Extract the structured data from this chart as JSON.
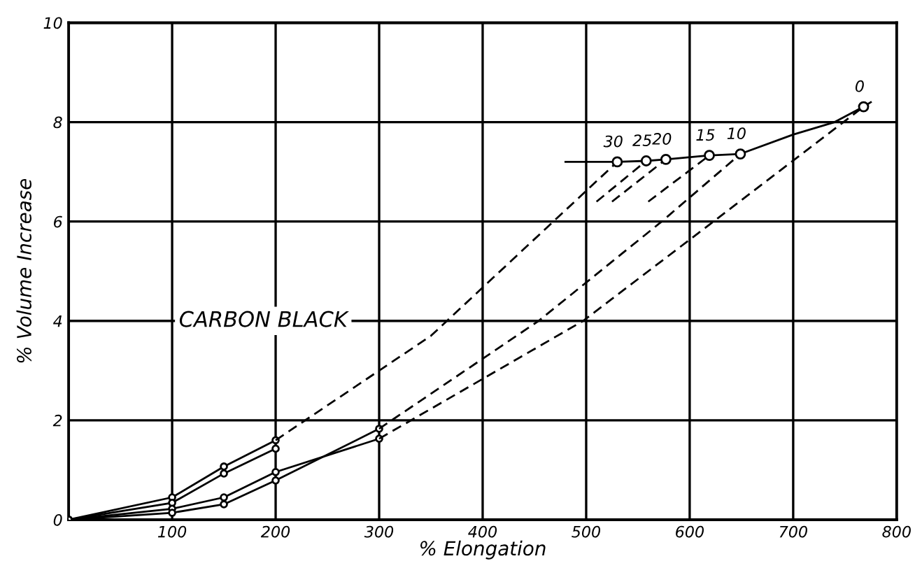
{
  "chart_data": {
    "type": "line",
    "xlabel": "% Elongation",
    "ylabel": "% Volume Increase",
    "xlim": [
      0,
      800
    ],
    "ylim": [
      0,
      10
    ],
    "xticks": [
      100,
      200,
      300,
      400,
      500,
      600,
      700,
      800
    ],
    "yticks": [
      0,
      2,
      4,
      6,
      8,
      10
    ],
    "grid": true,
    "legend": false,
    "annotations": [
      "CARBON BLACK",
      {
        "text": "30",
        "x": 530,
        "y": 7.2
      },
      {
        "text": "25",
        "x": 558,
        "y": 7.22
      },
      {
        "text": "20",
        "x": 577,
        "y": 7.25
      },
      {
        "text": "15",
        "x": 619,
        "y": 7.33
      },
      {
        "text": "10",
        "x": 649,
        "y": 7.36
      },
      {
        "text": "0",
        "x": 768,
        "y": 8.31
      }
    ],
    "series": [
      {
        "color": "#000000",
        "marker": "circle",
        "line_style": "solid",
        "x": [
          0,
          100,
          150,
          200
        ],
        "values": [
          0,
          0.45,
          1.07,
          1.6
        ]
      },
      {
        "color": "#000000",
        "marker": "circle",
        "line_style": "solid",
        "x": [
          0,
          100,
          150,
          200
        ],
        "values": [
          0,
          0.34,
          0.93,
          1.43
        ]
      },
      {
        "color": "#000000",
        "marker": "circle",
        "line_style": "solid",
        "x": [
          0,
          100,
          150,
          200,
          300
        ],
        "values": [
          0,
          0.22,
          0.45,
          0.96,
          1.63
        ]
      },
      {
        "color": "#000000",
        "marker": "circle",
        "line_style": "solid",
        "x": [
          0,
          100,
          150,
          200,
          300
        ],
        "values": [
          0,
          0.14,
          0.31,
          0.79,
          1.83
        ]
      },
      {
        "color": "#000000",
        "marker": "none",
        "line_style": "solid",
        "x": [
          480,
          530,
          558,
          577,
          619,
          649,
          700,
          740,
          768,
          775
        ],
        "values": [
          7.2,
          7.2,
          7.22,
          7.25,
          7.33,
          7.36,
          7.75,
          8.0,
          8.31,
          8.4
        ]
      },
      {
        "type": "scatter",
        "color": "#000000",
        "marker": "circle",
        "x": [
          530,
          558,
          577,
          619,
          649,
          768
        ],
        "values": [
          7.2,
          7.22,
          7.25,
          7.33,
          7.36,
          8.31
        ]
      },
      {
        "color": "#000000",
        "marker": "none",
        "line_style": "dashed",
        "x": [
          200,
          350,
          530
        ],
        "values": [
          1.6,
          3.7,
          7.2
        ]
      },
      {
        "color": "#000000",
        "marker": "none",
        "line_style": "dashed",
        "x": [
          300,
          454,
          573,
          649
        ],
        "values": [
          1.83,
          4,
          6,
          7.36
        ]
      },
      {
        "color": "#000000",
        "marker": "none",
        "line_style": "dashed",
        "x": [
          300,
          497,
          623,
          768
        ],
        "values": [
          1.63,
          4,
          6,
          8.31
        ]
      },
      {
        "color": "#000000",
        "marker": "none",
        "line_style": "dashed",
        "x": [
          510,
          558
        ],
        "values": [
          6.4,
          7.22
        ]
      },
      {
        "color": "#000000",
        "marker": "none",
        "line_style": "dashed",
        "x": [
          525,
          577
        ],
        "values": [
          6.4,
          7.25
        ]
      },
      {
        "color": "#000000",
        "marker": "none",
        "line_style": "dashed",
        "x": [
          560,
          619
        ],
        "values": [
          6.4,
          7.33
        ]
      }
    ]
  }
}
